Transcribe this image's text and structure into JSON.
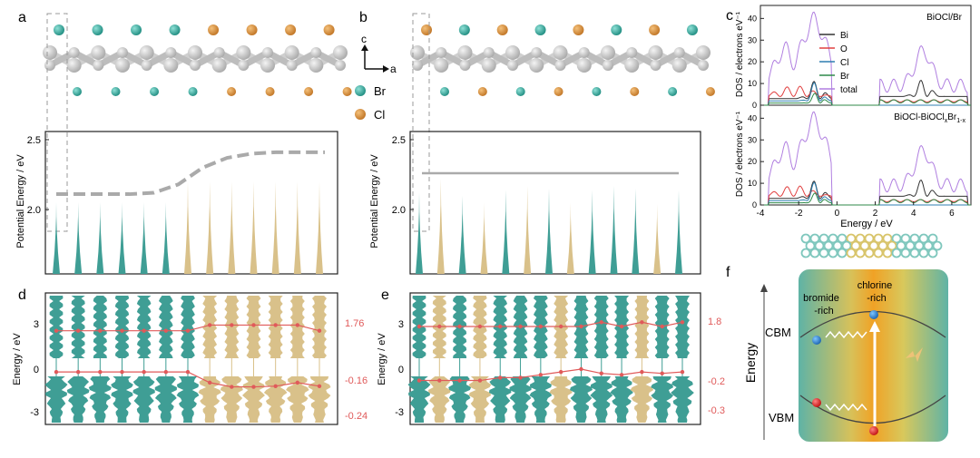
{
  "panels": {
    "a": "a",
    "b": "b",
    "c": "c",
    "d": "d",
    "e": "e",
    "f": "f"
  },
  "atoms": {
    "br": "Br",
    "cl": "Cl"
  },
  "axes_tri": {
    "c": "c",
    "a": "a"
  },
  "colors": {
    "teal": "#3f9e95",
    "tan": "#d9c18a",
    "orange": "#d08a3c",
    "red": "#e05a5a",
    "grey": "#b7b7b7",
    "bi": "#333333",
    "o": "#e04040",
    "cl_line": "#2f7fb0",
    "br_line": "#2f8a4a",
    "total": "#b07fe0"
  },
  "chart_data": [
    {
      "id": "a",
      "type": "bar",
      "title": "",
      "ylabel": "Potential Energy / eV",
      "yticks": [
        "2.0",
        "2.5"
      ],
      "ylim": [
        1.5,
        2.6
      ],
      "spikes": [
        2.05,
        2.05,
        2.05,
        2.05,
        2.05,
        2.05,
        2.2,
        2.2,
        2.2,
        2.2,
        2.2,
        2.2,
        2.2
      ],
      "kinds": [
        "Br",
        "Br",
        "Br",
        "Br",
        "Br",
        "Br",
        "Cl",
        "Cl",
        "Cl",
        "Cl",
        "Cl",
        "Cl",
        "Cl"
      ],
      "level_curve": [
        2.11,
        2.11,
        2.11,
        2.11,
        2.12,
        2.18,
        2.3,
        2.37,
        2.4,
        2.41,
        2.41,
        2.41
      ]
    },
    {
      "id": "b",
      "type": "bar",
      "title": "",
      "ylabel": "Potential Energy / eV",
      "yticks": [
        "2.0",
        "2.5"
      ],
      "ylim": [
        1.5,
        2.6
      ],
      "spikes": [
        2.12,
        2.22,
        2.1,
        2.05,
        2.14,
        2.17,
        2.15,
        2.05,
        2.14,
        2.17,
        2.15,
        2.04,
        2.14
      ],
      "kinds": [
        "Br",
        "Cl",
        "Br",
        "Cl",
        "Br",
        "Cl",
        "Br",
        "Cl",
        "Br",
        "Br",
        "Br",
        "Cl",
        "Br"
      ],
      "level": 2.26
    },
    {
      "id": "c",
      "type": "line",
      "xlabel": "Energy / eV",
      "xticks": [
        "-4",
        "-2",
        "0",
        "2",
        "4",
        "6"
      ],
      "xlim": [
        -4,
        7
      ],
      "top": {
        "label": "BiOCl/Br",
        "ylabel": "DOS / electrons eV⁻¹",
        "yticks": [
          "0",
          "10",
          "20",
          "30",
          "40"
        ],
        "ylim": [
          0,
          46
        ]
      },
      "bottom": {
        "label": "BiOCl-BiOCl",
        "label_sub_x": "x",
        "label_mid": "Br",
        "label_sub": "1-x",
        "ylabel": "DOS / electrons eV⁻¹",
        "yticks": [
          "0",
          "10",
          "20",
          "30",
          "40"
        ],
        "ylim": [
          0,
          46
        ]
      },
      "legend": [
        "Bi",
        "O",
        "Cl",
        "Br",
        "total"
      ]
    },
    {
      "id": "d",
      "type": "line",
      "ylabel": "Energy / eV",
      "yticks": [
        "3",
        "0",
        "-3"
      ],
      "right_ticks": [
        "1.76",
        "-0.16",
        "-0.24"
      ],
      "cbm": [
        2.7,
        2.7,
        2.7,
        2.7,
        2.7,
        2.7,
        2.7,
        3.1,
        3.1,
        3.1,
        3.1,
        3.1,
        2.7
      ],
      "vbm": [
        -0.2,
        -0.2,
        -0.2,
        -0.2,
        -0.2,
        -0.2,
        -0.2,
        -0.95,
        -1.25,
        -1.25,
        -1.2,
        -0.95,
        -1.2
      ]
    },
    {
      "id": "e",
      "type": "line",
      "ylabel": "Energy / eV",
      "yticks": [
        "3",
        "0",
        "-3"
      ],
      "right_ticks": [
        "1.8",
        "-0.2",
        "-0.3"
      ],
      "cbm": [
        3.0,
        3.0,
        3.0,
        3.0,
        3.0,
        3.0,
        3.0,
        3.0,
        3.0,
        3.3,
        3.0,
        3.3,
        3.0,
        3.3
      ],
      "vbm": [
        -0.8,
        -0.8,
        -0.8,
        -0.8,
        -0.6,
        -0.6,
        -0.4,
        -0.2,
        0.0,
        -0.3,
        -0.4,
        -0.2,
        -0.3,
        -0.2
      ]
    }
  ],
  "schematic": {
    "energy": "Energy",
    "cbm": "CBM",
    "vbm": "VBM",
    "bromide": "bromide",
    "rich": "-rich",
    "chlorine": "chlorine",
    "rich2": "-rich"
  }
}
